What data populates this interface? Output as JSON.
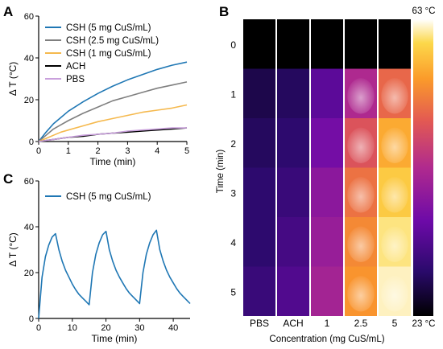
{
  "panels": {
    "a": {
      "letter": "A"
    },
    "b": {
      "letter": "B"
    },
    "c": {
      "letter": "C"
    }
  },
  "colors": {
    "csh5": "#1f77b4",
    "csh25": "#7f7f7f",
    "csh1": "#f5b94e",
    "ach": "#000000",
    "pbs": "#c9a0dc",
    "heatmap_scale": [
      "#000000",
      "#2a0a6b",
      "#6d0aa8",
      "#b02a8e",
      "#e35a52",
      "#fb9b2a",
      "#fcd84a",
      "#ffffff"
    ]
  },
  "chart_data": [
    {
      "type": "line",
      "panel": "A",
      "xlabel": "Time (min)",
      "ylabel": "Δ T (°C)",
      "xlim": [
        0,
        5
      ],
      "ylim": [
        0,
        60
      ],
      "xticks": [
        "0",
        "1",
        "2",
        "3",
        "4",
        "5"
      ],
      "yticks": [
        "0",
        "20",
        "40",
        "60"
      ],
      "grid": false,
      "legend": "top-left",
      "x": [
        0,
        0.25,
        0.5,
        0.75,
        1,
        1.5,
        2,
        2.5,
        3,
        3.5,
        4,
        4.5,
        5
      ],
      "series": [
        {
          "name": "CSH (5 mg CuS/mL)",
          "color_key": "csh5",
          "values": [
            0,
            4.5,
            8.5,
            11.5,
            14.5,
            19,
            23,
            26.5,
            29.5,
            32,
            34.5,
            36.5,
            38
          ]
        },
        {
          "name": "CSH (2.5 mg CuS/mL)",
          "color_key": "csh25",
          "values": [
            0,
            3,
            6,
            8,
            10,
            13.5,
            16.5,
            19.5,
            21.5,
            23.5,
            25.5,
            27,
            28.5
          ]
        },
        {
          "name": "CSH (1 mg CuS/mL)",
          "color_key": "csh1",
          "values": [
            0,
            1.5,
            3,
            4.5,
            5.5,
            7.5,
            9.5,
            11,
            12.5,
            14,
            15,
            16,
            17.5
          ]
        },
        {
          "name": "ACH",
          "color_key": "ach",
          "values": [
            0,
            0.5,
            1,
            1.5,
            2,
            2.5,
            3.5,
            4,
            4.5,
            5,
            5.5,
            6,
            6.5
          ]
        },
        {
          "name": "PBS",
          "color_key": "pbs",
          "values": [
            0,
            0.5,
            1,
            1.5,
            2,
            3,
            3.5,
            4,
            5,
            5.5,
            6,
            6.5,
            6.5
          ]
        }
      ]
    },
    {
      "type": "line",
      "panel": "C",
      "xlabel": "Time (min)",
      "ylabel": "Δ T (°C)",
      "xlim": [
        0,
        45
      ],
      "ylim": [
        0,
        60
      ],
      "xticks": [
        "0",
        "10",
        "20",
        "30",
        "40"
      ],
      "yticks": [
        "0",
        "20",
        "40",
        "60"
      ],
      "grid": false,
      "legend": "top-left",
      "x": [
        0,
        1,
        2,
        3,
        4,
        5,
        6,
        7,
        8,
        9,
        10,
        11,
        12,
        13,
        14,
        15,
        16,
        17,
        18,
        19,
        20,
        21,
        22,
        23,
        24,
        25,
        26,
        27,
        28,
        29,
        30,
        31,
        32,
        33,
        34,
        35,
        36,
        37,
        38,
        39,
        40,
        41,
        42,
        43,
        44,
        45
      ],
      "series": [
        {
          "name": "CSH (5 mg CuS/mL)",
          "color_key": "csh5",
          "values": [
            0,
            18,
            27,
            32,
            35.5,
            37,
            30,
            25,
            21,
            18,
            15,
            12.5,
            10.5,
            9,
            7.5,
            6,
            20,
            28,
            33,
            36.5,
            38,
            30,
            25,
            21,
            18,
            15.5,
            13,
            11,
            9.5,
            8,
            6.5,
            20,
            28,
            33,
            36.5,
            38.5,
            30,
            25,
            21,
            18,
            15.5,
            13,
            11,
            9.5,
            8,
            6.5
          ]
        }
      ]
    },
    {
      "type": "heatmap",
      "panel": "B",
      "xlabel": "Concentration (mg CuS/mL)",
      "ylabel": "Time (min)",
      "columns": [
        "PBS",
        "ACH",
        "1",
        "2.5",
        "5"
      ],
      "rows": [
        "0",
        "1",
        "2",
        "3",
        "4",
        "5"
      ],
      "colorbar": {
        "max_label": "63 °C",
        "min_label": "23 °C",
        "min": 23,
        "max": 63
      },
      "values": [
        [
          23,
          23,
          23,
          23,
          23
        ],
        [
          27,
          28,
          33,
          40,
          47
        ],
        [
          28,
          29,
          35,
          45,
          53
        ],
        [
          29,
          30,
          37,
          48,
          56
        ],
        [
          29,
          31,
          38,
          50,
          59
        ],
        [
          30,
          32,
          39,
          51,
          61
        ]
      ]
    }
  ]
}
